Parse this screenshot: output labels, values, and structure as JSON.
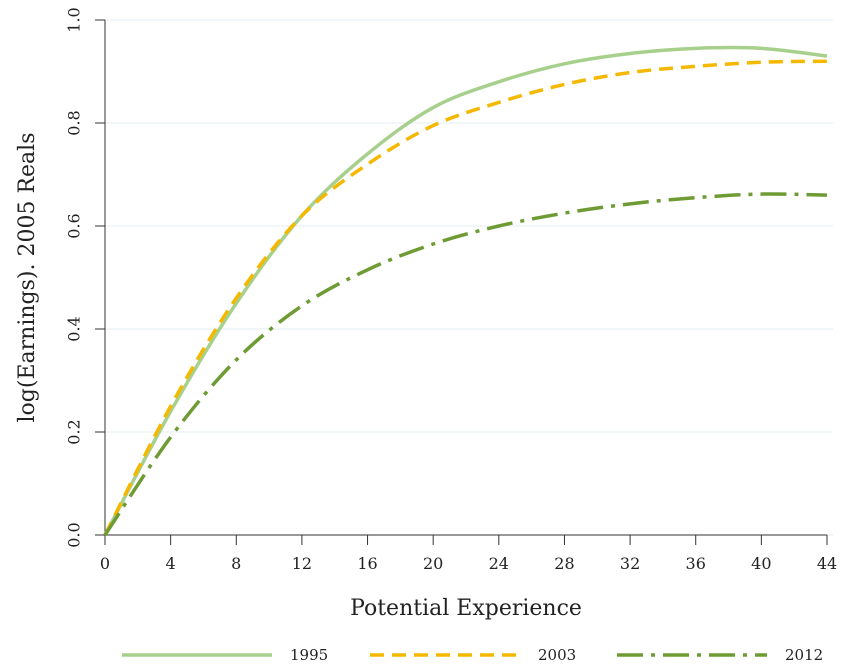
{
  "chart_data": {
    "type": "line",
    "xlabel": "Potential Experience",
    "ylabel": "log(Earnings). 2005 Reals",
    "xlim": [
      0,
      44
    ],
    "ylim": [
      0,
      1.0
    ],
    "x_ticks": [
      "0",
      "4",
      "8",
      "12",
      "16",
      "20",
      "24",
      "28",
      "32",
      "36",
      "40",
      "44"
    ],
    "y_ticks": [
      "0.0",
      "0.2",
      "0.4",
      "0.6",
      "0.8",
      "1.0"
    ],
    "grid": true,
    "legend_position": "bottom",
    "x": [
      0,
      4,
      8,
      12,
      16,
      20,
      24,
      28,
      32,
      36,
      40,
      44
    ],
    "series": [
      {
        "name": "1995",
        "color": "#a8d08d",
        "style": "solid",
        "values": [
          0.0,
          0.24,
          0.45,
          0.62,
          0.74,
          0.83,
          0.88,
          0.915,
          0.935,
          0.945,
          0.945,
          0.93
        ]
      },
      {
        "name": "2003",
        "color": "#f5b800",
        "style": "dash",
        "values": [
          0.0,
          0.25,
          0.46,
          0.62,
          0.72,
          0.795,
          0.84,
          0.875,
          0.898,
          0.91,
          0.918,
          0.92
        ]
      },
      {
        "name": "2012",
        "color": "#6e9b34",
        "style": "dashdot",
        "values": [
          0.0,
          0.19,
          0.34,
          0.445,
          0.515,
          0.565,
          0.6,
          0.625,
          0.643,
          0.655,
          0.662,
          0.66
        ]
      }
    ]
  }
}
